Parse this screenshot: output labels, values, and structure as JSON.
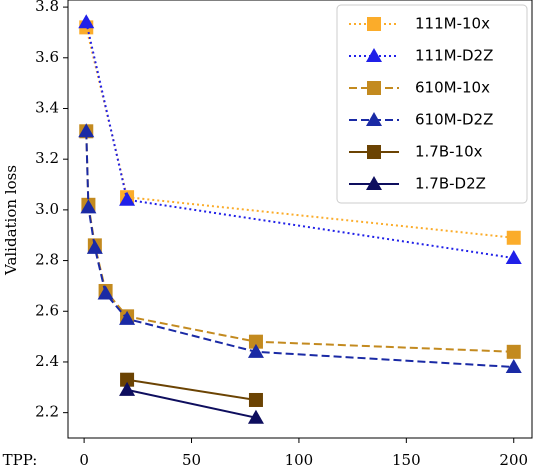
{
  "chart_data": {
    "type": "line",
    "xlabel": "TPP:",
    "ylabel": "Validation loss",
    "xlim": [
      -7.5,
      208.5
    ],
    "ylim": [
      2.1,
      3.828
    ],
    "xticks": [
      0,
      50,
      100,
      150,
      200
    ],
    "yticks": [
      2.2,
      2.4,
      2.6,
      2.8,
      {
        "value": 3,
        "label": "3.0"
      },
      3.2,
      3.4,
      3.6,
      3.8
    ],
    "legend": "upper right",
    "series": [
      {
        "name": "111M-10x",
        "color": "#fbac2a",
        "linestyle": "dotted",
        "marker": "square",
        "x": [
          1,
          20,
          200
        ],
        "values": [
          3.72,
          3.05,
          2.89
        ]
      },
      {
        "name": "111M-D2Z",
        "color": "#2020e8",
        "linestyle": "dotted",
        "marker": "triangle",
        "x": [
          1,
          20,
          200
        ],
        "values": [
          3.74,
          3.04,
          2.81
        ]
      },
      {
        "name": "610M-10x",
        "color": "#c38a1f",
        "linestyle": "dashed",
        "marker": "square",
        "x": [
          1,
          2,
          5,
          10,
          20,
          80,
          200
        ],
        "values": [
          3.31,
          3.02,
          2.86,
          2.68,
          2.58,
          2.48,
          2.44
        ]
      },
      {
        "name": "610M-D2Z",
        "color": "#1a2aa5",
        "linestyle": "dashed",
        "marker": "triangle",
        "x": [
          1,
          2,
          5,
          10,
          20,
          80,
          200
        ],
        "values": [
          3.31,
          3.01,
          2.85,
          2.67,
          2.57,
          2.44,
          2.38
        ]
      },
      {
        "name": "1.7B-10x",
        "color": "#6b4303",
        "linestyle": "solid",
        "marker": "square",
        "x": [
          20,
          80
        ],
        "values": [
          2.33,
          2.25
        ]
      },
      {
        "name": "1.7B-D2Z",
        "color": "#0e0e5e",
        "linestyle": "solid",
        "marker": "triangle",
        "x": [
          20,
          80
        ],
        "values": [
          2.29,
          2.18
        ]
      }
    ]
  }
}
